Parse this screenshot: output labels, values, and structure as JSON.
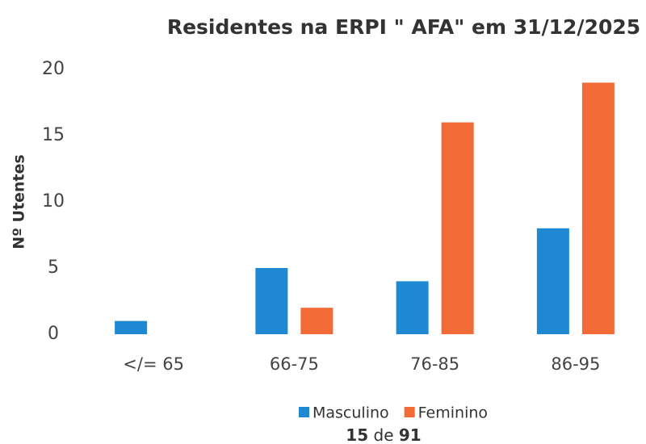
{
  "chart_data": {
    "type": "bar",
    "title": "Residentes na ERPI \" AFA\" em 31/12/2025",
    "ylabel": "Nº Utentes",
    "categories": [
      "</= 65",
      "66-75",
      "76-85",
      "86-95"
    ],
    "series": [
      {
        "name": "Masculino",
        "color": "#1e88d2",
        "values": [
          1,
          5,
          4,
          8
        ]
      },
      {
        "name": "Feminino",
        "color": "#f26a36",
        "values": [
          0,
          2,
          16,
          19
        ]
      }
    ],
    "ylim": [
      0,
      20
    ],
    "yticks": [
      0,
      5,
      10,
      15,
      20
    ],
    "grid": false,
    "legend": "bottom",
    "footer": {
      "count": "15",
      "word": "de",
      "total": "91"
    }
  }
}
